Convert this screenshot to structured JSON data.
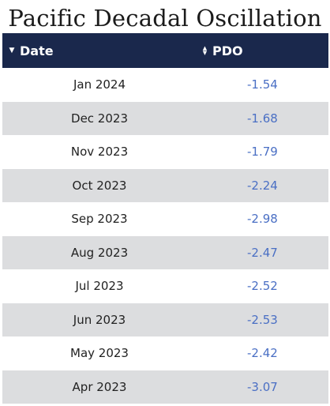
{
  "title": "Pacific Decadal Oscillation",
  "table": {
    "columns": [
      {
        "label": "Date",
        "sort": "descending",
        "icon": "sort-desc-icon"
      },
      {
        "label": "PDO",
        "sort": "none",
        "icon": "sort-both-icon"
      }
    ],
    "rows": [
      {
        "date": "Jan 2024",
        "pdo": "-1.54"
      },
      {
        "date": "Dec 2023",
        "pdo": "-1.68"
      },
      {
        "date": "Nov 2023",
        "pdo": "-1.79"
      },
      {
        "date": "Oct 2023",
        "pdo": "-2.24"
      },
      {
        "date": "Sep 2023",
        "pdo": "-2.98"
      },
      {
        "date": "Aug 2023",
        "pdo": "-2.47"
      },
      {
        "date": "Jul 2023",
        "pdo": "-2.52"
      },
      {
        "date": "Jun 2023",
        "pdo": "-2.53"
      },
      {
        "date": "May 2023",
        "pdo": "-2.42"
      },
      {
        "date": "Apr 2023",
        "pdo": "-3.07"
      }
    ]
  },
  "colors": {
    "header_bg": "#1a284c",
    "stripe_bg": "#dcdddf",
    "value_text": "#4a6fc4"
  }
}
